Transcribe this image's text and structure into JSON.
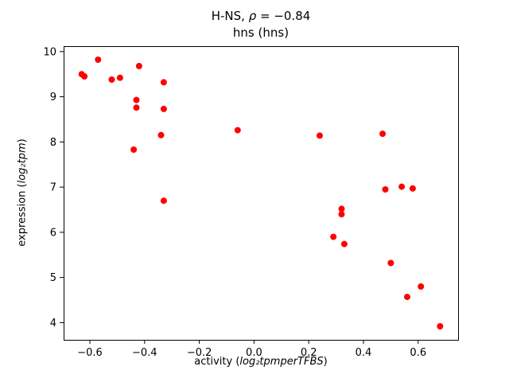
{
  "figure": {
    "background_color": "#ffffff",
    "axis_color": "#000000"
  },
  "chart_data": {
    "type": "scatter",
    "title": "H-NS, ρ = −0.84",
    "subtitle": "hns (hns)",
    "title_parts": {
      "pre": "H-NS, ",
      "rho": "ρ",
      "post": " = −0.84"
    },
    "xlabel": "activity (log₂tpmperTFBS)",
    "ylabel": "expression (log₂tpm)",
    "xlabel_parts": {
      "pre": "activity (",
      "math": "log₂tpmperTFBS",
      "post": ")"
    },
    "ylabel_parts": {
      "pre": "expression (",
      "math": "log₂tpm",
      "post": ")"
    },
    "marker_color": "#ff0000",
    "marker_radius": 4,
    "grid": false,
    "legend": null,
    "xlim": [
      -0.696,
      0.746
    ],
    "ylim": [
      3.62,
      10.12
    ],
    "x_ticks": [
      -0.6,
      -0.4,
      -0.2,
      0.0,
      0.2,
      0.4,
      0.6
    ],
    "x_tick_labels": [
      "−0.6",
      "−0.4",
      "−0.2",
      "0.0",
      "0.2",
      "0.4",
      "0.6"
    ],
    "y_ticks": [
      4,
      5,
      6,
      7,
      8,
      9,
      10
    ],
    "y_tick_labels": [
      "4",
      "5",
      "6",
      "7",
      "8",
      "9",
      "10"
    ],
    "points": [
      [
        -0.63,
        9.5
      ],
      [
        -0.62,
        9.45
      ],
      [
        -0.57,
        9.82
      ],
      [
        -0.52,
        9.38
      ],
      [
        -0.49,
        9.42
      ],
      [
        -0.42,
        9.68
      ],
      [
        -0.43,
        8.93
      ],
      [
        -0.43,
        8.76
      ],
      [
        -0.44,
        7.83
      ],
      [
        -0.33,
        9.32
      ],
      [
        -0.33,
        8.73
      ],
      [
        -0.34,
        8.15
      ],
      [
        -0.33,
        6.7
      ],
      [
        -0.06,
        8.26
      ],
      [
        0.24,
        8.14
      ],
      [
        0.29,
        5.9
      ],
      [
        0.32,
        6.52
      ],
      [
        0.32,
        6.4
      ],
      [
        0.33,
        5.74
      ],
      [
        0.47,
        8.18
      ],
      [
        0.48,
        6.95
      ],
      [
        0.54,
        7.01
      ],
      [
        0.58,
        6.97
      ],
      [
        0.5,
        5.32
      ],
      [
        0.56,
        4.57
      ],
      [
        0.61,
        4.8
      ],
      [
        0.68,
        3.92
      ]
    ]
  }
}
